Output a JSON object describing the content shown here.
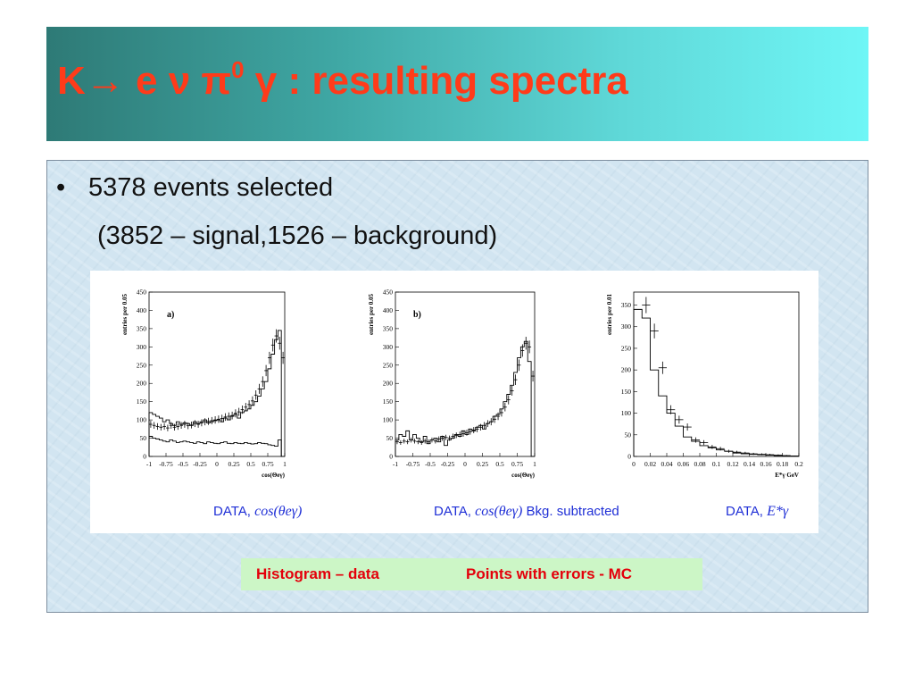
{
  "title": {
    "main": "K→ e ν π",
    "sup": "0",
    "rest": " γ : resulting spectra"
  },
  "bullet": {
    "marker": "•",
    "line1": "5378 events selected",
    "line2": "(3852 – signal,1526 – background)"
  },
  "legend": {
    "left": "Histogram – data",
    "right": "Points with errors - MC"
  },
  "colors": {
    "title_text": "#ff3b1a",
    "caption_text": "#1f2fd6",
    "legend_text": "#e4000b",
    "legend_bg": "#ccf6c6"
  },
  "chart_data": [
    {
      "type": "bar",
      "panel_label": "a)",
      "caption": "DATA, ",
      "caption_math": "cos(θeγ)",
      "caption_extra": "",
      "ylabel": "entries per 0.05",
      "xlabel": "cos(Θeγ)",
      "xlim": [
        -1,
        1
      ],
      "ylim": [
        0,
        450
      ],
      "xticks": [
        "-1",
        "-0.75",
        "-0.5",
        "-0.25",
        "0",
        "0.25",
        "0.5",
        "0.75",
        "1"
      ],
      "xtick_values": [
        -1,
        -0.75,
        -0.5,
        -0.25,
        0,
        0.25,
        0.5,
        0.75,
        1
      ],
      "yticks": [
        0,
        50,
        100,
        150,
        200,
        250,
        300,
        350,
        400,
        450
      ],
      "bin_start": -1,
      "bin_width": 0.05,
      "series": [
        {
          "name": "",
          "style": "histogram",
          "values": [
            120,
            115,
            110,
            105,
            95,
            100,
            90,
            85,
            95,
            88,
            92,
            90,
            85,
            95,
            90,
            95,
            100,
            92,
            95,
            98,
            100,
            95,
            105,
            100,
            110,
            115,
            105,
            120,
            125,
            130,
            140,
            150,
            165,
            185,
            205,
            240,
            280,
            320,
            345,
            0
          ]
        },
        {
          "name": "",
          "style": "histogram",
          "values": [
            55,
            50,
            48,
            45,
            42,
            40,
            45,
            42,
            38,
            40,
            42,
            40,
            38,
            36,
            40,
            38,
            35,
            40,
            38,
            36,
            35,
            38,
            40,
            36,
            35,
            38,
            36,
            35,
            38,
            36,
            34,
            35,
            38,
            36,
            35,
            32,
            30,
            28,
            45,
            0
          ]
        },
        {
          "name": "",
          "style": "points",
          "values": [
            88,
            85,
            82,
            80,
            82,
            78,
            85,
            80,
            82,
            85,
            88,
            84,
            86,
            90,
            88,
            92,
            95,
            96,
            98,
            100,
            102,
            104,
            108,
            110,
            112,
            118,
            122,
            128,
            135,
            142,
            152,
            168,
            185,
            205,
            235,
            270,
            305,
            330,
            310,
            270
          ]
        }
      ]
    },
    {
      "type": "bar",
      "panel_label": "b)",
      "caption": "DATA, ",
      "caption_math": "cos(θeγ)",
      "caption_extra": " Bkg. subtracted",
      "ylabel": "entries per 0.05",
      "xlabel": "cos(Θeγ)",
      "xlim": [
        -1,
        1
      ],
      "ylim": [
        0,
        450
      ],
      "xticks": [
        "-1",
        "-0.75",
        "-0.5",
        "-0.25",
        "0",
        "0.25",
        "0.5",
        "0.75",
        "1"
      ],
      "xtick_values": [
        -1,
        -0.75,
        -0.5,
        -0.25,
        0,
        0.25,
        0.5,
        0.75,
        1
      ],
      "yticks": [
        0,
        50,
        100,
        150,
        200,
        250,
        300,
        350,
        400,
        450
      ],
      "bin_start": -1,
      "bin_width": 0.05,
      "series": [
        {
          "name": "",
          "style": "histogram",
          "values": [
            45,
            60,
            55,
            70,
            45,
            60,
            50,
            40,
            55,
            35,
            45,
            50,
            40,
            55,
            30,
            45,
            50,
            60,
            55,
            70,
            60,
            75,
            70,
            80,
            85,
            75,
            90,
            95,
            110,
            115,
            130,
            150,
            170,
            195,
            230,
            270,
            300,
            315,
            260,
            0
          ]
        },
        {
          "name": "",
          "style": "points",
          "values": [
            40,
            38,
            42,
            40,
            45,
            42,
            40,
            38,
            42,
            40,
            45,
            42,
            48,
            50,
            52,
            50,
            55,
            58,
            60,
            62,
            65,
            68,
            72,
            75,
            80,
            85,
            90,
            95,
            102,
            110,
            120,
            135,
            155,
            180,
            210,
            250,
            290,
            310,
            300,
            220
          ]
        }
      ]
    },
    {
      "type": "bar",
      "panel_label": "",
      "caption": "DATA, ",
      "caption_math": "E*γ",
      "caption_extra": "",
      "ylabel": "entries per 0.01",
      "xlabel": "E*γ GeV",
      "xlim": [
        0,
        0.2
      ],
      "ylim": [
        0,
        380
      ],
      "xticks": [
        "0",
        "0.02",
        "0.04",
        "0.06",
        "0.08",
        "0.1",
        "0.12",
        "0.14",
        "0.16",
        "0.18",
        "0.2"
      ],
      "xtick_values": [
        0,
        0.02,
        0.04,
        0.06,
        0.08,
        0.1,
        0.12,
        0.14,
        0.16,
        0.18,
        0.2
      ],
      "yticks": [
        0,
        50,
        100,
        150,
        200,
        250,
        300,
        350
      ],
      "bin_start": 0,
      "bin_width": 0.01,
      "series": [
        {
          "name": "",
          "style": "histogram",
          "values": [
            340,
            320,
            200,
            140,
            100,
            70,
            45,
            35,
            25,
            20,
            15,
            12,
            8,
            6,
            5,
            4,
            3,
            2,
            1,
            1
          ]
        },
        {
          "name": "",
          "style": "points",
          "values": [
            0,
            350,
            290,
            205,
            108,
            85,
            68,
            38,
            32,
            22,
            18,
            12,
            10,
            8,
            6,
            5,
            4,
            3,
            2,
            1
          ]
        }
      ]
    }
  ]
}
